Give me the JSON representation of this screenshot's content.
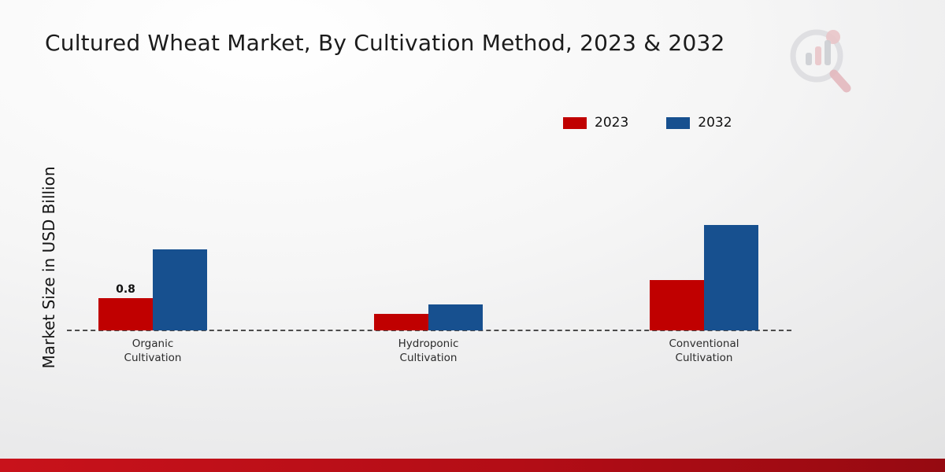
{
  "title": "Cultured Wheat Market, By Cultivation Method, 2023 & 2032",
  "logo_name": "market-research-future-logo",
  "chart_data": {
    "type": "bar",
    "title": "Cultured Wheat Market, By Cultivation Method, 2023 & 2032",
    "ylabel": "Market Size in USD Billion",
    "xlabel": "",
    "ylim": [
      0,
      3.2
    ],
    "grid": false,
    "legend_position": "top-right",
    "categories": [
      "Organic Cultivation",
      "Hydroponic Cultivation",
      "Conventional Cultivation"
    ],
    "series": [
      {
        "name": "2023",
        "color": "#c00000",
        "values": [
          0.8,
          0.4,
          1.25
        ]
      },
      {
        "name": "2032",
        "color": "#17508f",
        "values": [
          2.0,
          0.65,
          2.6
        ]
      }
    ],
    "shown_labels": [
      {
        "category_index": 0,
        "series_index": 0,
        "text": "0.8"
      }
    ],
    "baseline_style": "dashed"
  }
}
